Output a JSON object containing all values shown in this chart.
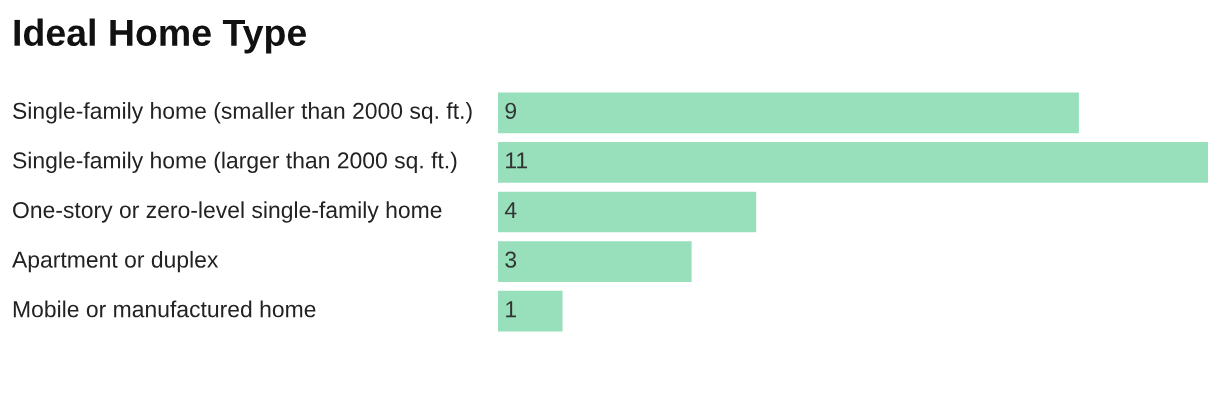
{
  "chart_data": {
    "type": "bar",
    "orientation": "horizontal",
    "title": "Ideal Home Type",
    "categories": [
      "Single-family home (smaller than 2000 sq. ft.)",
      "Single-family home (larger than 2000 sq. ft.)",
      "One-story or zero-level single-family home",
      "Apartment or duplex",
      "Mobile or manufactured home"
    ],
    "values": [
      9,
      11,
      4,
      3,
      1
    ],
    "color": "#98e0bc",
    "data_labels": true
  }
}
